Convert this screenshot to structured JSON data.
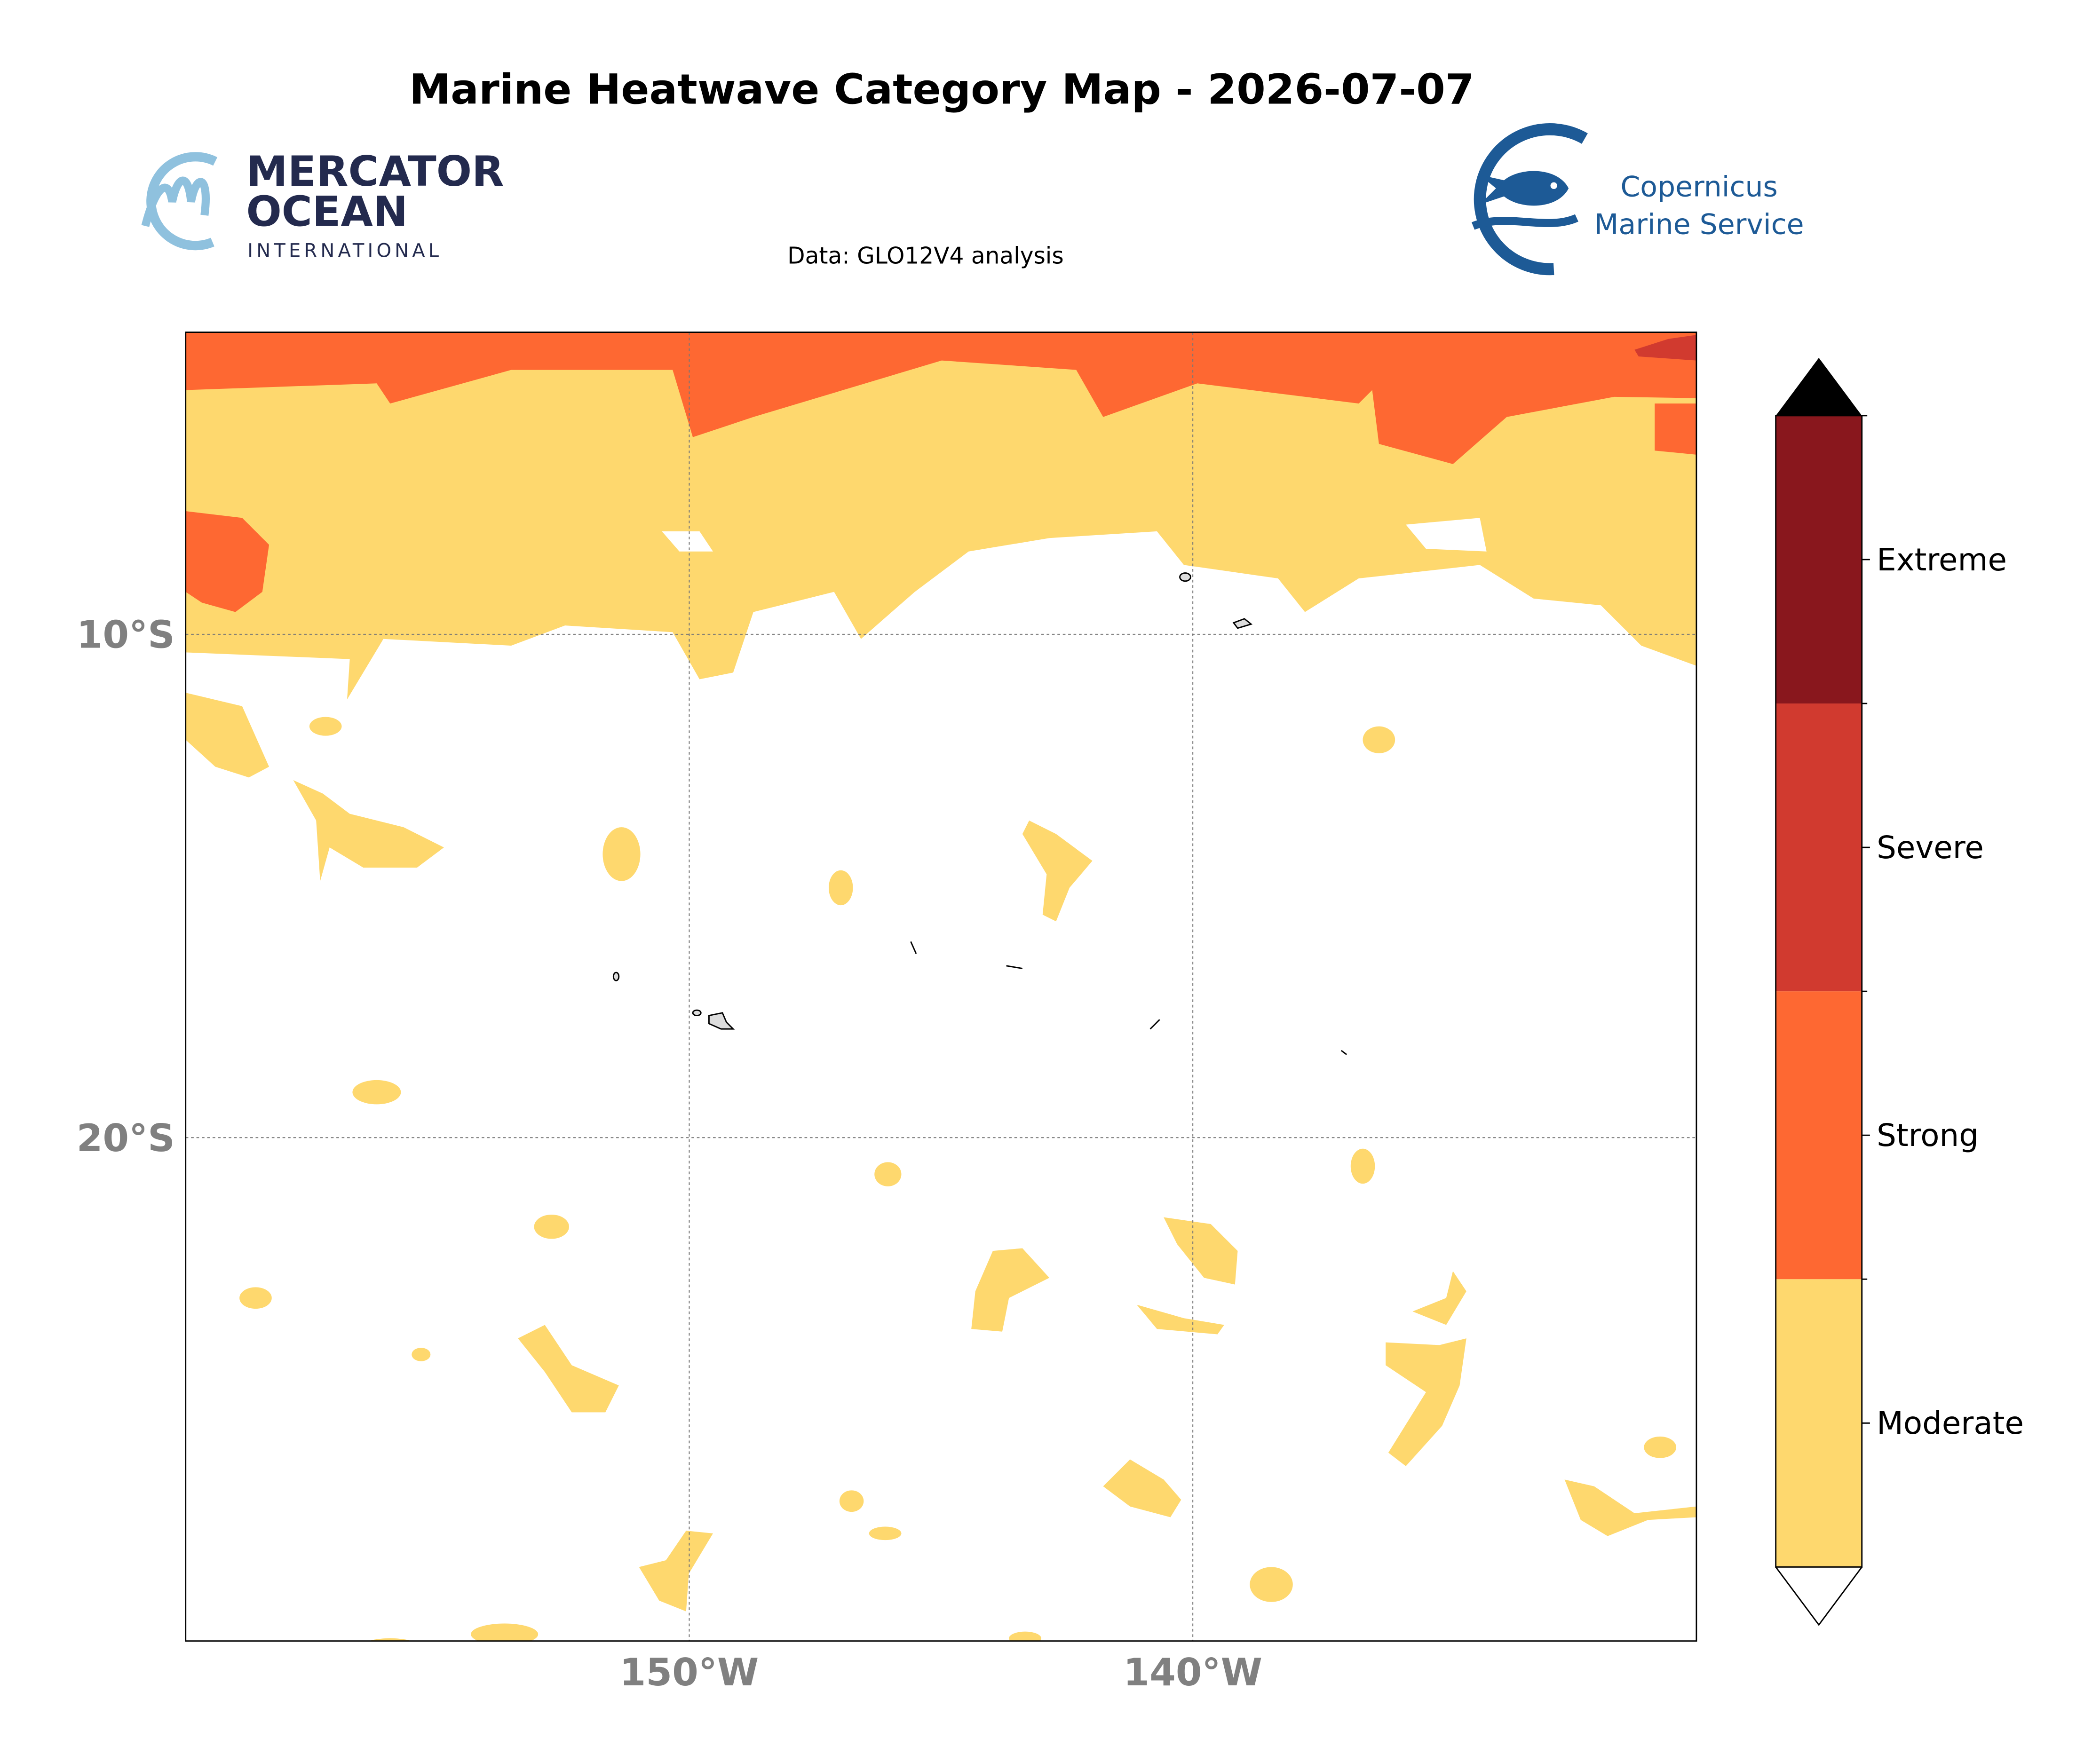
{
  "title": "Marine Heatwave Category Map - 2026-07-07",
  "subtitle": "Data: GLO12V4 analysis",
  "logos": {
    "mercator": [
      "MERCATOR",
      "OCEAN",
      "INTERNATIONAL"
    ],
    "copernicus": [
      "Copernicus",
      "Marine Service"
    ]
  },
  "map": {
    "xlim": [
      -160,
      -130
    ],
    "ylim": [
      -30,
      -4
    ],
    "xticks": [
      {
        "value": -150,
        "label": "150°W"
      },
      {
        "value": -140,
        "label": "140°W"
      }
    ],
    "yticks": [
      {
        "value": -10,
        "label": "10°S"
      },
      {
        "value": -20,
        "label": "20°S"
      }
    ],
    "grid": true
  },
  "legend": {
    "categories": [
      {
        "name": "Moderate",
        "color": "#fed86e"
      },
      {
        "name": "Strong",
        "color": "#fe6832"
      },
      {
        "name": "Severe",
        "color": "#d13a2f"
      },
      {
        "name": "Extreme",
        "color": "#89171d"
      }
    ]
  }
}
